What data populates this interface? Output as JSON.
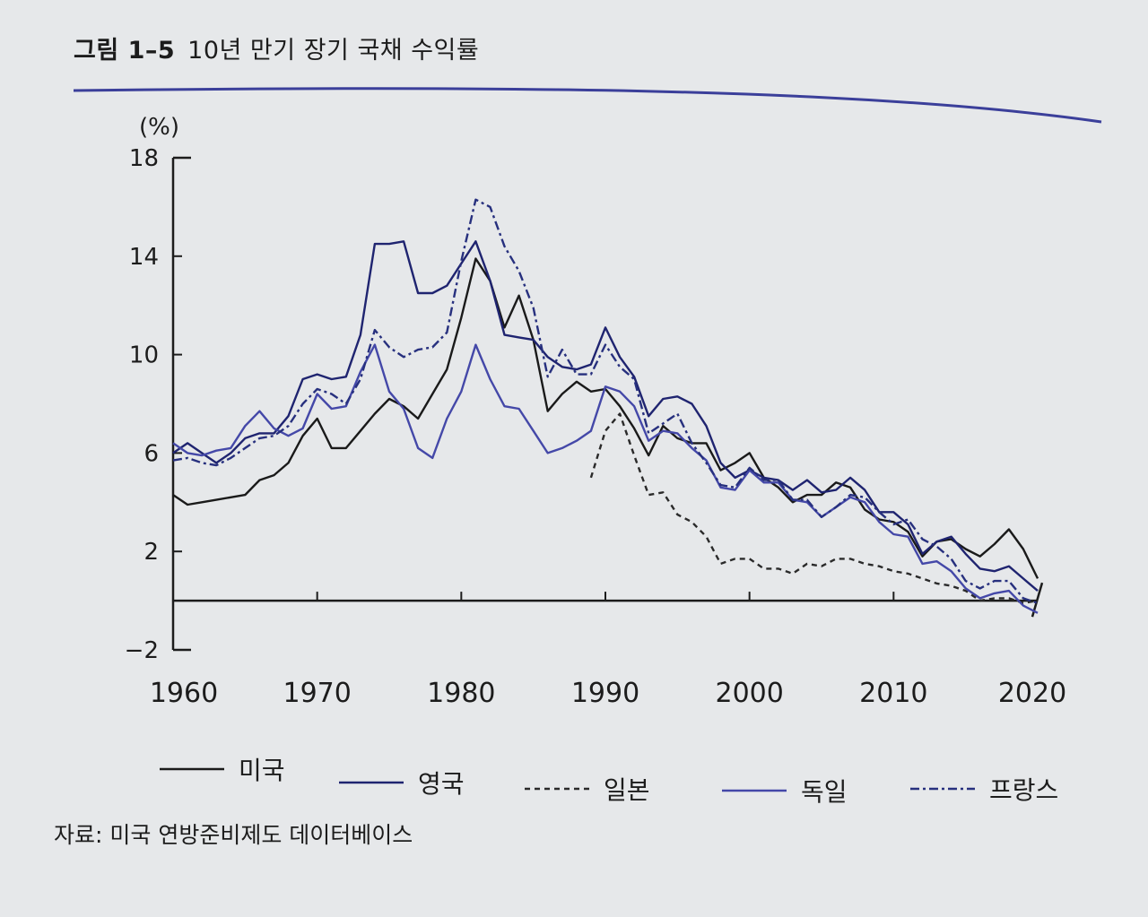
{
  "figure": {
    "label": "그림 1–5",
    "title": "10년 만기 장기 국채 수익률"
  },
  "source": "자료: 미국 연방준비제도 데이터베이스",
  "colors": {
    "us": "#1a1a1a",
    "uk": "#1f2470",
    "jp": "#2a2a2a",
    "de": "#4448a8",
    "fr": "#27307e",
    "rule": "#3b3f9a"
  },
  "chart_data": {
    "type": "line",
    "title": "10년 만기 장기 국채 수익률",
    "ylabel": "(%)",
    "xlabel": "",
    "xlim": [
      1960,
      2020
    ],
    "ylim": [
      -2,
      18
    ],
    "yticks": [
      18,
      14,
      10,
      6,
      2,
      -2
    ],
    "xticks": [
      1960,
      1970,
      1980,
      1990,
      2000,
      2010,
      2020
    ],
    "series": [
      {
        "key": "us",
        "name": "미국",
        "dash": "",
        "x": [
          1960,
          1961,
          1962,
          1963,
          1964,
          1965,
          1966,
          1967,
          1968,
          1969,
          1970,
          1971,
          1972,
          1973,
          1974,
          1975,
          1976,
          1977,
          1978,
          1979,
          1980,
          1981,
          1982,
          1983,
          1984,
          1985,
          1986,
          1987,
          1988,
          1989,
          1990,
          1991,
          1992,
          1993,
          1994,
          1995,
          1996,
          1997,
          1998,
          1999,
          2000,
          2001,
          2002,
          2003,
          2004,
          2005,
          2006,
          2007,
          2008,
          2009,
          2010,
          2011,
          2012,
          2013,
          2014,
          2015,
          2016,
          2017,
          2018,
          2019,
          2020
        ],
        "y": [
          4.3,
          3.9,
          4.0,
          4.1,
          4.2,
          4.3,
          4.9,
          5.1,
          5.6,
          6.7,
          7.4,
          6.2,
          6.2,
          6.9,
          7.6,
          8.2,
          7.9,
          7.4,
          8.4,
          9.4,
          11.5,
          13.9,
          13.0,
          11.1,
          12.4,
          10.6,
          7.7,
          8.4,
          8.9,
          8.5,
          8.6,
          7.9,
          7.0,
          5.9,
          7.1,
          6.6,
          6.4,
          6.4,
          5.3,
          5.6,
          6.0,
          5.0,
          4.6,
          4.0,
          4.3,
          4.3,
          4.8,
          4.6,
          3.7,
          3.3,
          3.2,
          2.8,
          1.8,
          2.4,
          2.5,
          2.1,
          1.8,
          2.3,
          2.9,
          2.1,
          0.9
        ]
      },
      {
        "key": "uk",
        "name": "영국",
        "dash": "",
        "x": [
          1960,
          1961,
          1962,
          1963,
          1964,
          1965,
          1966,
          1967,
          1968,
          1969,
          1970,
          1971,
          1972,
          1973,
          1974,
          1975,
          1976,
          1977,
          1978,
          1979,
          1980,
          1981,
          1982,
          1983,
          1984,
          1985,
          1986,
          1987,
          1988,
          1989,
          1990,
          1991,
          1992,
          1993,
          1994,
          1995,
          1996,
          1997,
          1998,
          1999,
          2000,
          2001,
          2002,
          2003,
          2004,
          2005,
          2006,
          2007,
          2008,
          2009,
          2010,
          2011,
          2012,
          2013,
          2014,
          2015,
          2016,
          2017,
          2018,
          2019,
          2020
        ],
        "y": [
          6.0,
          6.4,
          6.0,
          5.6,
          6.0,
          6.6,
          6.8,
          6.8,
          7.5,
          9.0,
          9.2,
          9.0,
          9.1,
          10.8,
          14.5,
          14.5,
          14.6,
          12.5,
          12.5,
          12.8,
          13.7,
          14.6,
          13.0,
          10.8,
          10.7,
          10.6,
          9.9,
          9.5,
          9.4,
          9.6,
          11.1,
          9.9,
          9.1,
          7.5,
          8.2,
          8.3,
          8.0,
          7.1,
          5.6,
          5.0,
          5.3,
          5.0,
          4.9,
          4.5,
          4.9,
          4.4,
          4.5,
          5.0,
          4.5,
          3.6,
          3.6,
          3.1,
          1.9,
          2.4,
          2.6,
          1.9,
          1.3,
          1.2,
          1.4,
          0.9,
          0.4
        ]
      },
      {
        "key": "jp",
        "name": "일본",
        "dash": "6,5",
        "x": [
          1989,
          1990,
          1991,
          1992,
          1993,
          1994,
          1995,
          1996,
          1997,
          1998,
          1999,
          2000,
          2001,
          2002,
          2003,
          2004,
          2005,
          2006,
          2007,
          2008,
          2009,
          2010,
          2011,
          2012,
          2013,
          2014,
          2015,
          2016,
          2017,
          2018,
          2019,
          2020
        ],
        "y": [
          5.0,
          6.9,
          7.6,
          5.9,
          4.3,
          4.4,
          3.5,
          3.2,
          2.6,
          1.5,
          1.7,
          1.7,
          1.3,
          1.3,
          1.1,
          1.5,
          1.4,
          1.7,
          1.7,
          1.5,
          1.4,
          1.2,
          1.1,
          0.9,
          0.7,
          0.6,
          0.4,
          0.0,
          0.1,
          0.1,
          -0.1,
          0.0
        ]
      },
      {
        "key": "de",
        "name": "독일",
        "dash": "",
        "x": [
          1960,
          1961,
          1962,
          1963,
          1964,
          1965,
          1966,
          1967,
          1968,
          1969,
          1970,
          1971,
          1972,
          1973,
          1974,
          1975,
          1976,
          1977,
          1978,
          1979,
          1980,
          1981,
          1982,
          1983,
          1984,
          1985,
          1986,
          1987,
          1988,
          1989,
          1990,
          1991,
          1992,
          1993,
          1994,
          1995,
          1996,
          1997,
          1998,
          1999,
          2000,
          2001,
          2002,
          2003,
          2004,
          2005,
          2006,
          2007,
          2008,
          2009,
          2010,
          2011,
          2012,
          2013,
          2014,
          2015,
          2016,
          2017,
          2018,
          2019,
          2020
        ],
        "y": [
          6.4,
          6.0,
          5.9,
          6.1,
          6.2,
          7.1,
          7.7,
          7.0,
          6.7,
          7.0,
          8.4,
          7.8,
          7.9,
          9.3,
          10.4,
          8.5,
          7.8,
          6.2,
          5.8,
          7.4,
          8.5,
          10.4,
          9.0,
          7.9,
          7.8,
          6.9,
          6.0,
          6.2,
          6.5,
          6.9,
          8.7,
          8.5,
          7.9,
          6.5,
          6.9,
          6.8,
          6.2,
          5.7,
          4.6,
          4.5,
          5.3,
          4.8,
          4.8,
          4.1,
          4.0,
          3.4,
          3.8,
          4.2,
          4.0,
          3.2,
          2.7,
          2.6,
          1.5,
          1.6,
          1.2,
          0.5,
          0.1,
          0.3,
          0.4,
          -0.2,
          -0.5
        ]
      },
      {
        "key": "fr",
        "name": "프랑스",
        "dash": "10,4,3,4",
        "x": [
          1960,
          1961,
          1962,
          1963,
          1964,
          1965,
          1966,
          1967,
          1968,
          1969,
          1970,
          1971,
          1972,
          1973,
          1974,
          1975,
          1976,
          1977,
          1978,
          1979,
          1980,
          1981,
          1982,
          1983,
          1984,
          1985,
          1986,
          1987,
          1988,
          1989,
          1990,
          1991,
          1992,
          1993,
          1994,
          1995,
          1996,
          1997,
          1998,
          1999,
          2000,
          2001,
          2002,
          2003,
          2004,
          2005,
          2006,
          2007,
          2008,
          2009,
          2010,
          2011,
          2012,
          2013,
          2014,
          2015,
          2016,
          2017,
          2018,
          2019,
          2020
        ],
        "y": [
          5.7,
          5.8,
          5.6,
          5.5,
          5.8,
          6.2,
          6.6,
          6.7,
          7.1,
          8.0,
          8.6,
          8.4,
          8.0,
          9.0,
          11.0,
          10.3,
          9.9,
          10.2,
          10.3,
          10.9,
          13.8,
          16.3,
          16.0,
          14.4,
          13.4,
          11.9,
          9.1,
          10.2,
          9.2,
          9.2,
          10.4,
          9.5,
          9.0,
          6.8,
          7.2,
          7.6,
          6.4,
          5.6,
          4.7,
          4.6,
          5.4,
          4.9,
          4.9,
          4.1,
          4.1,
          3.4,
          3.8,
          4.3,
          4.2,
          3.6,
          3.1,
          3.3,
          2.5,
          2.2,
          1.7,
          0.8,
          0.5,
          0.8,
          0.8,
          0.1,
          -0.1
        ]
      }
    ],
    "legend": [
      "미국",
      "영국",
      "일본",
      "독일",
      "프랑스"
    ],
    "legend_position": "bottom"
  }
}
